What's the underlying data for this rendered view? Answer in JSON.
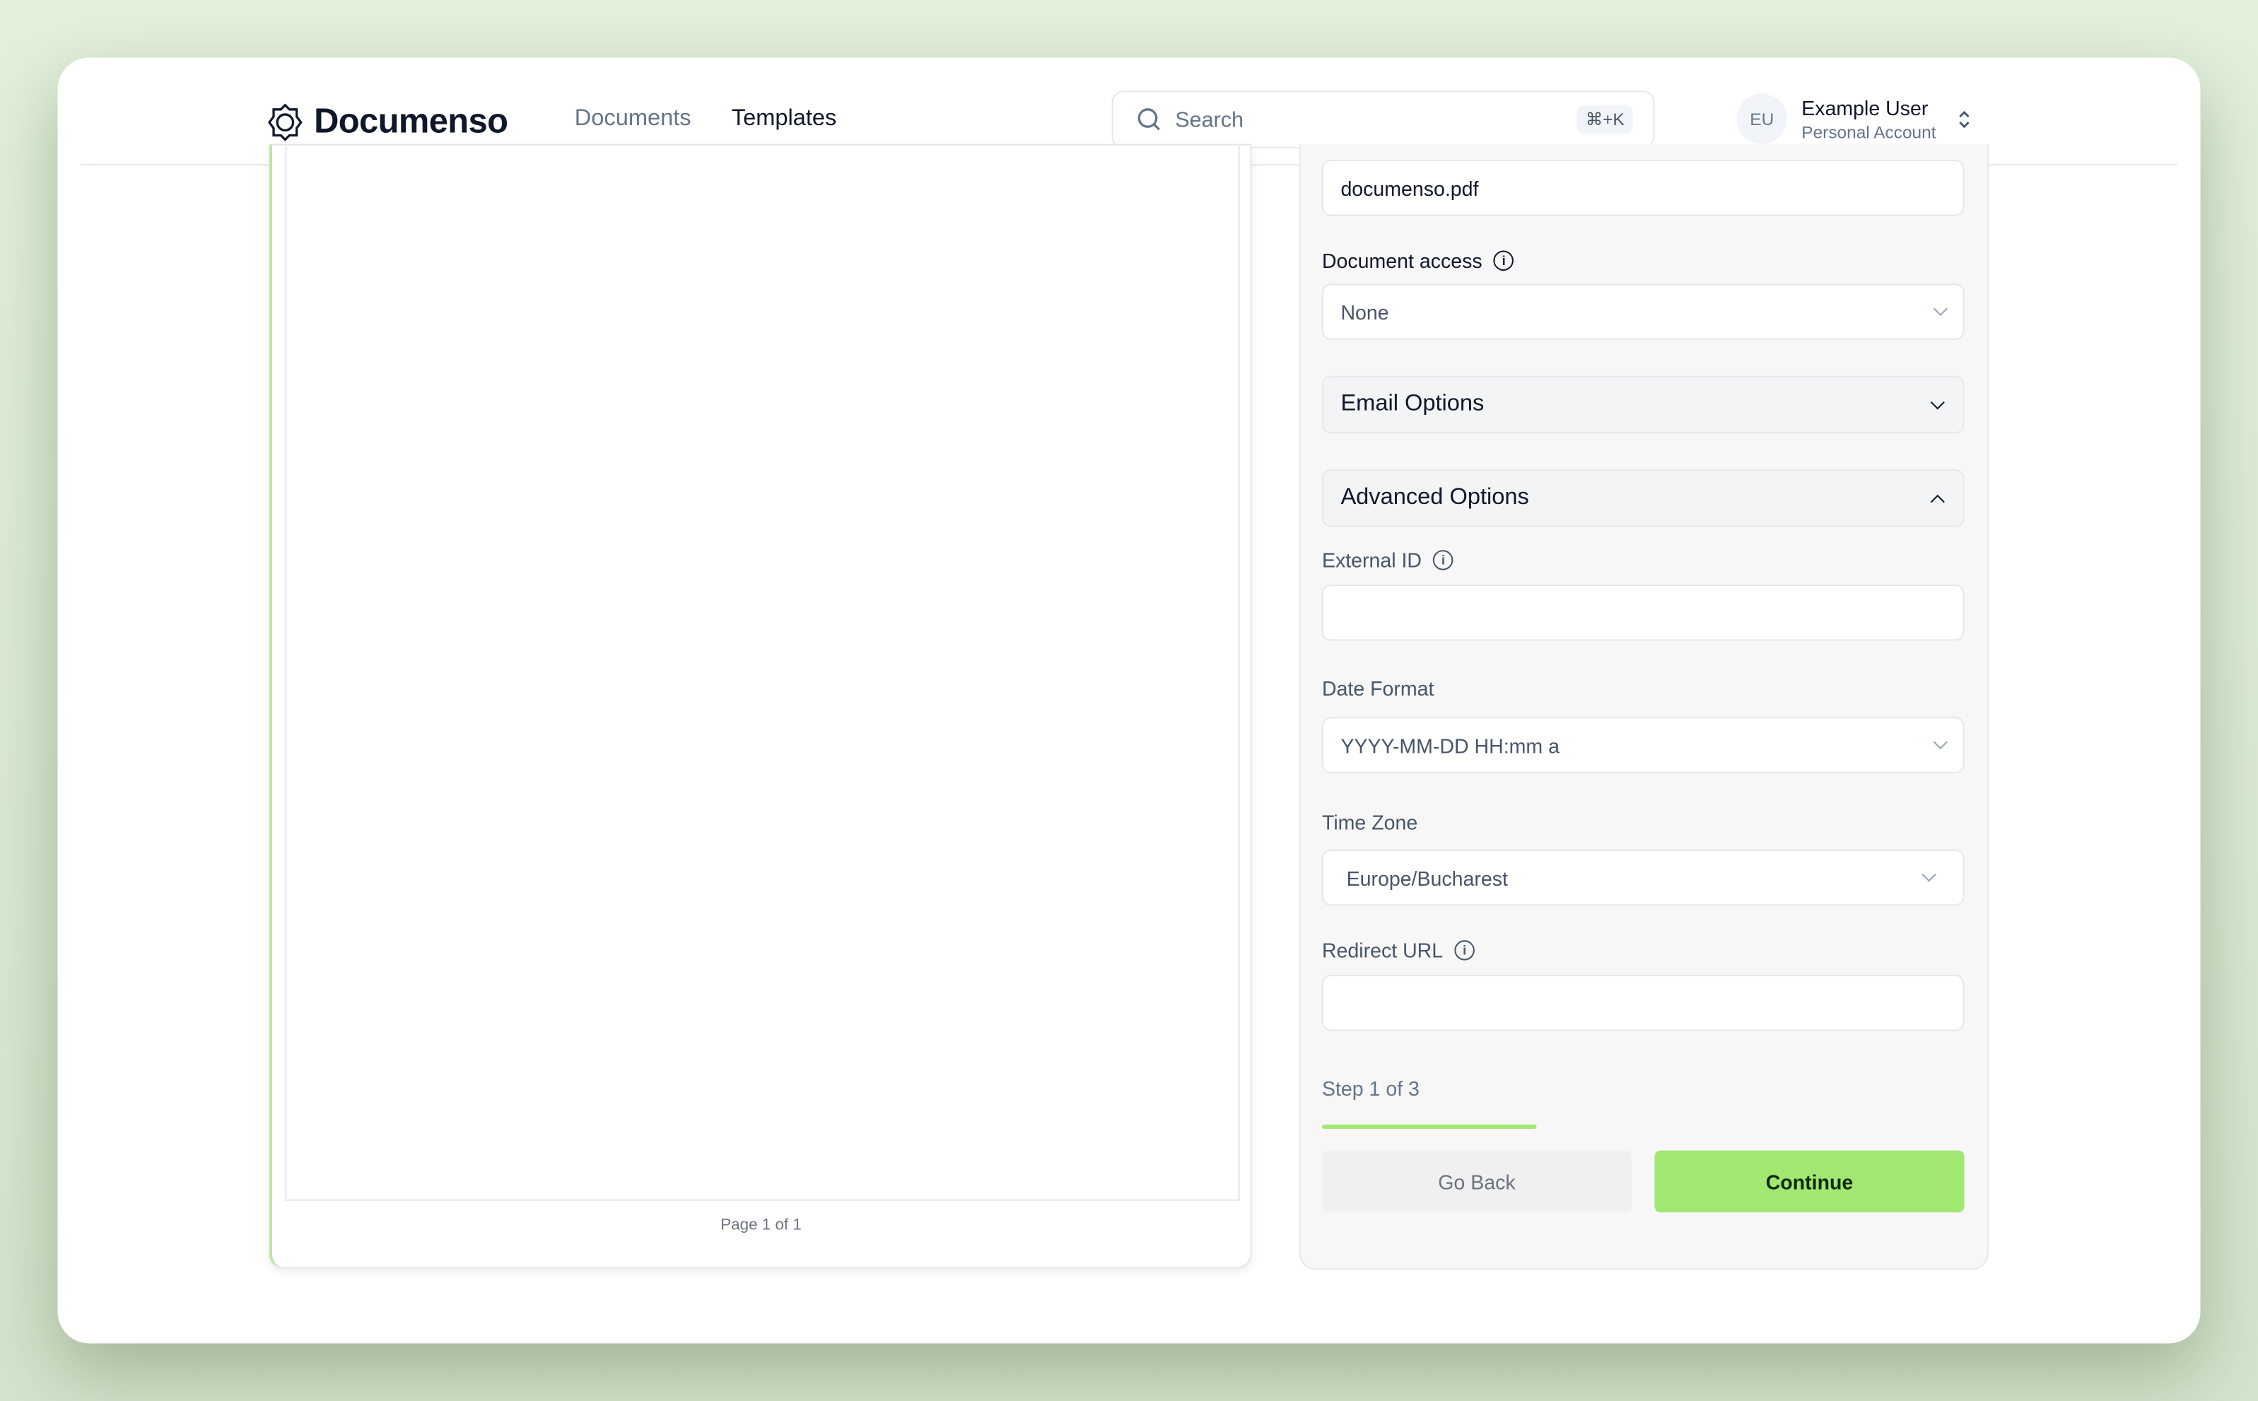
{
  "header": {
    "brand": "Documenso",
    "nav": [
      {
        "label": "Documents",
        "active": false
      },
      {
        "label": "Templates",
        "active": true
      }
    ],
    "search": {
      "placeholder": "Search",
      "shortcut": "⌘+K"
    },
    "user": {
      "initials": "EU",
      "name": "Example User",
      "account": "Personal Account"
    }
  },
  "preview": {
    "page_label": "Page 1 of 1"
  },
  "form": {
    "title_value": "documenso.pdf",
    "document_access": {
      "label": "Document access",
      "value": "None"
    },
    "email_options": {
      "label": "Email Options",
      "expanded": false
    },
    "advanced_options": {
      "label": "Advanced Options",
      "expanded": true
    },
    "external_id": {
      "label": "External ID",
      "value": ""
    },
    "date_format": {
      "label": "Date Format",
      "value": "YYYY-MM-DD HH:mm a"
    },
    "time_zone": {
      "label": "Time Zone",
      "value": "Europe/Bucharest"
    },
    "redirect_url": {
      "label": "Redirect URL",
      "value": ""
    },
    "step": {
      "label": "Step 1 of 3",
      "current": 1,
      "total": 3
    },
    "buttons": {
      "back": "Go Back",
      "continue": "Continue"
    }
  },
  "colors": {
    "accent": "#a2e771",
    "background": "#e3f0dc"
  }
}
